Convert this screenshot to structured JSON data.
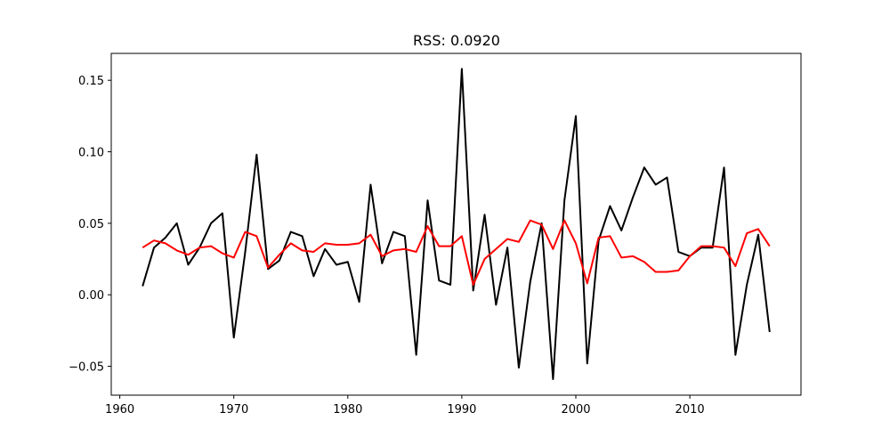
{
  "chart_data": {
    "type": "line",
    "title": "RSS: 0.0920",
    "xlabel": "",
    "ylabel": "",
    "xlim": [
      1959.25,
      2019.75
    ],
    "ylim": [
      -0.0702,
      0.1688
    ],
    "x_ticks": [
      1960,
      1970,
      1980,
      1990,
      2000,
      2010
    ],
    "y_ticks": [
      -0.05,
      0.0,
      0.05,
      0.1,
      0.15
    ],
    "x_tick_labels": [
      "1960",
      "1970",
      "1980",
      "1990",
      "2000",
      "2010"
    ],
    "y_tick_labels": [
      "−0.05",
      "0.00",
      "0.05",
      "0.10",
      "0.15"
    ],
    "grid": false,
    "x": [
      1962,
      1963,
      1964,
      1965,
      1966,
      1967,
      1968,
      1969,
      1970,
      1971,
      1972,
      1973,
      1974,
      1975,
      1976,
      1977,
      1978,
      1979,
      1980,
      1981,
      1982,
      1983,
      1984,
      1985,
      1986,
      1987,
      1988,
      1989,
      1990,
      1991,
      1992,
      1993,
      1994,
      1995,
      1996,
      1997,
      1998,
      1999,
      2000,
      2001,
      2002,
      2003,
      2004,
      2005,
      2006,
      2007,
      2008,
      2009,
      2010,
      2011,
      2012,
      2013,
      2014,
      2015,
      2016,
      2017
    ],
    "series": [
      {
        "color": "#000000",
        "values": [
          0.006,
          0.033,
          0.04,
          0.05,
          0.021,
          0.033,
          0.05,
          0.057,
          -0.03,
          0.03,
          0.098,
          0.018,
          0.024,
          0.044,
          0.041,
          0.013,
          0.032,
          0.021,
          0.023,
          -0.005,
          0.077,
          0.022,
          0.044,
          0.041,
          -0.042,
          0.066,
          0.01,
          0.007,
          0.158,
          0.003,
          0.056,
          -0.007,
          0.033,
          -0.051,
          0.009,
          0.05,
          -0.059,
          0.066,
          0.125,
          -0.048,
          0.038,
          0.062,
          0.045,
          0.068,
          0.089,
          0.077,
          0.082,
          0.03,
          0.027,
          0.033,
          0.033,
          0.089,
          -0.042,
          0.007,
          0.042,
          -0.026
        ]
      },
      {
        "color": "#ff0000",
        "values": [
          0.033,
          0.038,
          0.036,
          0.031,
          0.028,
          0.033,
          0.034,
          0.029,
          0.026,
          0.044,
          0.041,
          0.019,
          0.028,
          0.036,
          0.031,
          0.03,
          0.036,
          0.035,
          0.035,
          0.036,
          0.042,
          0.027,
          0.031,
          0.032,
          0.03,
          0.048,
          0.034,
          0.034,
          0.041,
          0.007,
          0.025,
          0.032,
          0.039,
          0.037,
          0.052,
          0.049,
          0.032,
          0.052,
          0.036,
          0.008,
          0.04,
          0.041,
          0.026,
          0.027,
          0.023,
          0.016,
          0.016,
          0.017,
          0.027,
          0.034,
          0.034,
          0.033,
          0.02,
          0.043,
          0.046,
          0.034
        ]
      }
    ]
  }
}
